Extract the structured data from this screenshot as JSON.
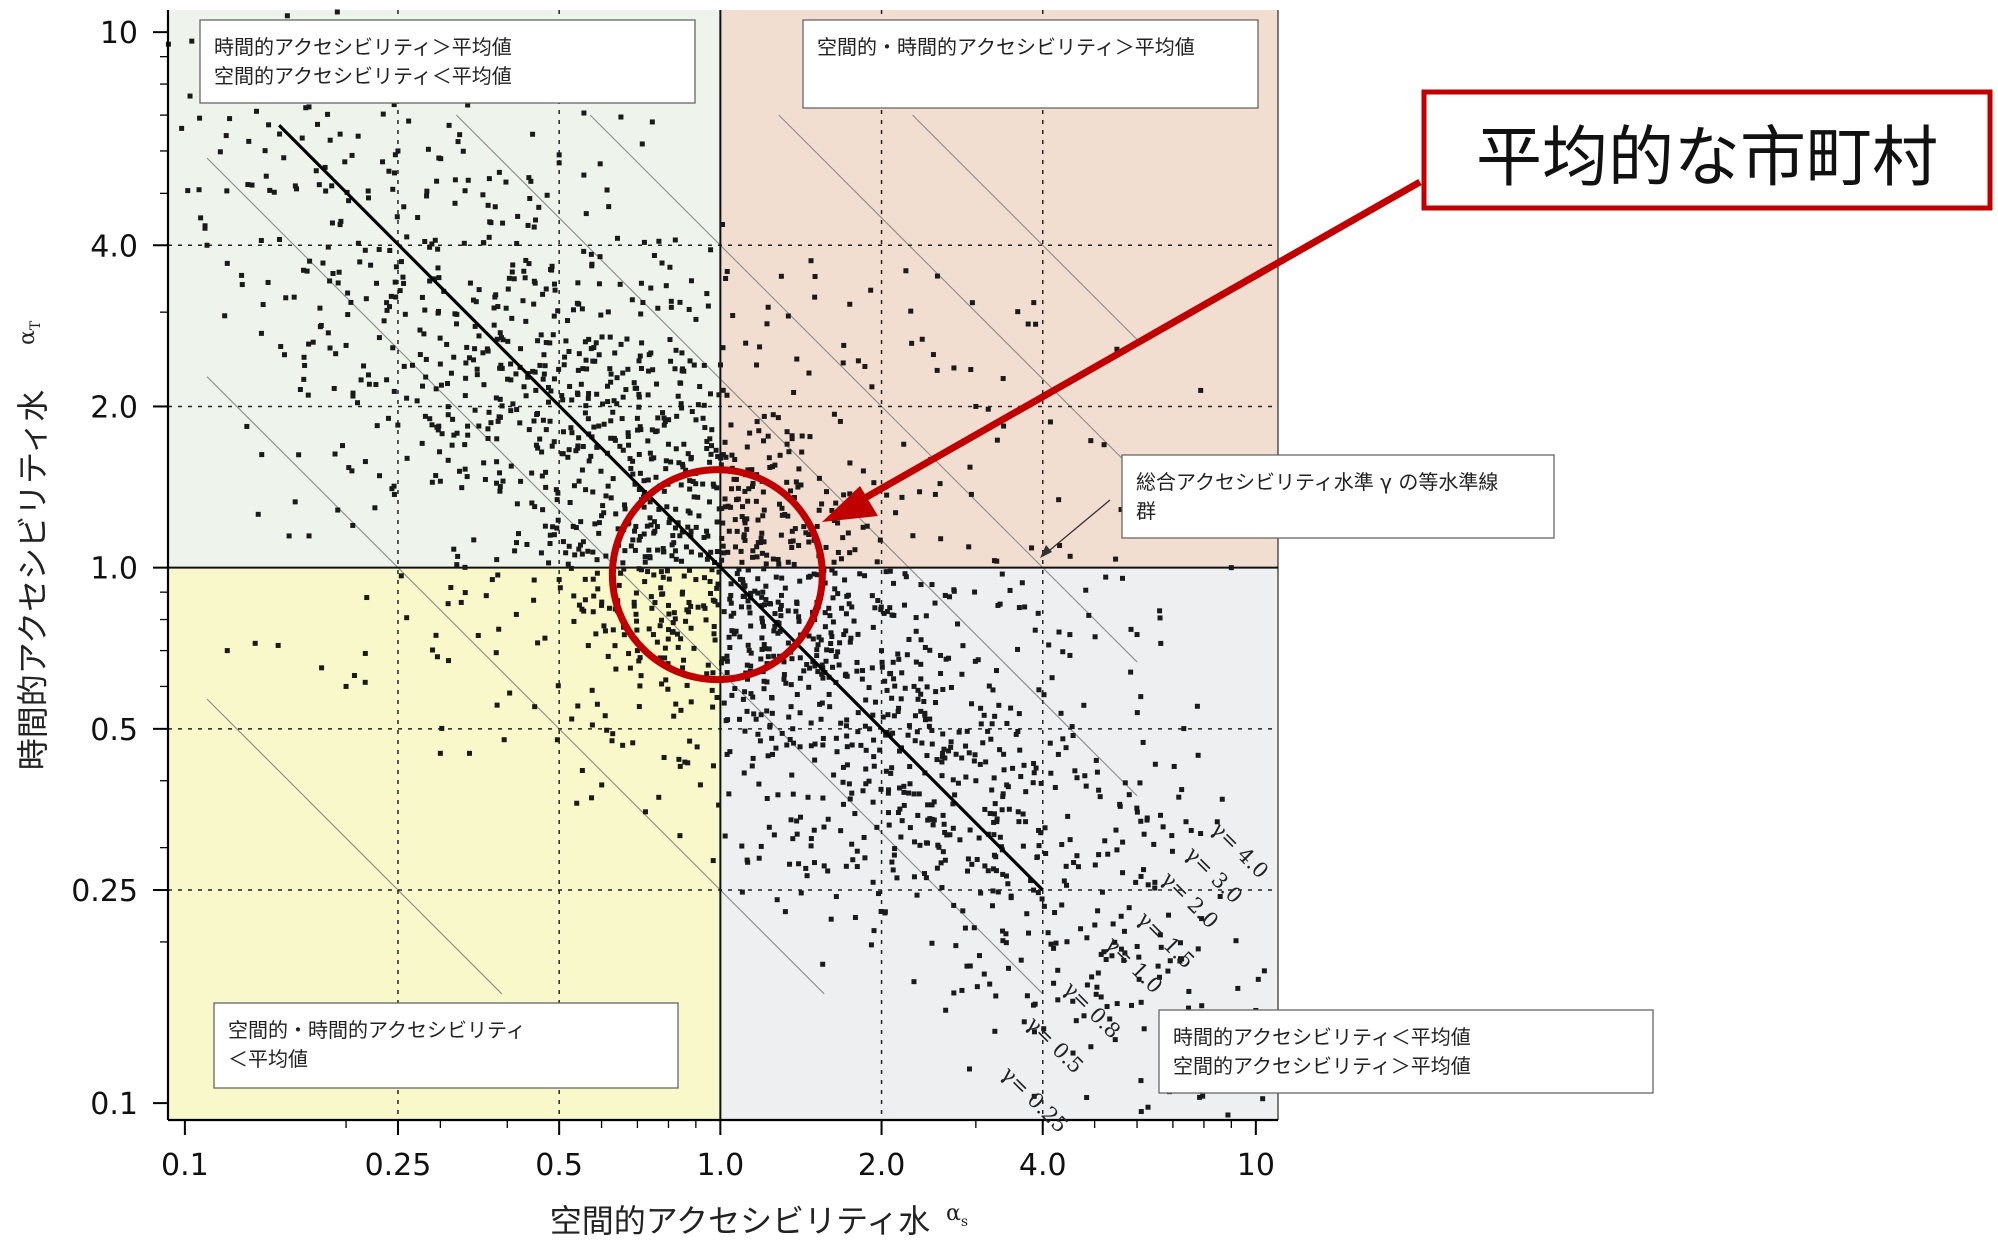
{
  "chart_data": {
    "type": "scatter",
    "x_scale": "log",
    "y_scale": "log",
    "xlim": [
      0.093,
      11.0
    ],
    "ylim": [
      0.093,
      11.0
    ],
    "x_ticks": [
      "0.1",
      "0.25",
      "0.5",
      "1.0",
      "2.0",
      "4.0",
      "10"
    ],
    "y_ticks": [
      "0.1",
      "0.25",
      "0.5",
      "1.0",
      "2.0",
      "4.0",
      "10"
    ],
    "xlabel": "空間的アクセシビリティ水",
    "xlabel_symbol": "α",
    "xlabel_sub": "s",
    "ylabel": "時間的アクセシビリティ水",
    "ylabel_symbol": "α",
    "ylabel_sub": "T",
    "quadrants": [
      {
        "text": [
          "時間的アクセシビリティ＞平均値",
          "空間的アクセシビリティ＜平均値"
        ],
        "color": "#eef4ec"
      },
      {
        "text": [
          "空間的・時間的アクセシビリティ＞平均値"
        ],
        "color": "#f2ddd1"
      },
      {
        "text": [
          "空間的・時間的アクセシビリティ",
          "＜平均値"
        ],
        "color": "#f9f8cb"
      },
      {
        "text": [
          "時間的アクセシビリティ＜平均値",
          "空間的アクセシビリティ＞平均値"
        ],
        "color": "#edeff1"
      }
    ],
    "isolines": [
      0.25,
      0.5,
      0.8,
      1.0,
      1.5,
      2.0,
      3.0,
      4.0
    ],
    "isoline_labels": [
      "γ= 0.25",
      "γ= 0.5",
      "γ= 0.8",
      "γ= 1.0",
      "γ= 1.5",
      "γ= 2.0",
      "γ= 3.0",
      "γ= 4.0"
    ],
    "isoline_annotation": [
      "総合アクセシビリティ水準 γ の等水準線",
      "群"
    ],
    "callout": "平均的な市町村",
    "callout_color": "#c00000",
    "highlight_circle": {
      "center": [
        1.0,
        1.0
      ],
      "note": "average municipalities"
    },
    "points_note": "approx. 1800 municipalities; dense cloud along γ≈1",
    "points": [
      [
        0.25,
        6.0
      ],
      [
        0.5,
        5.9
      ],
      [
        0.5,
        5.7
      ],
      [
        0.32,
        5.3
      ],
      [
        1.5,
        3.2
      ],
      [
        0.55,
        2.2
      ],
      [
        0.7,
        1.9
      ],
      [
        0.8,
        1.7
      ],
      [
        0.9,
        1.5
      ],
      [
        1.1,
        1.3
      ],
      [
        1.2,
        1.25
      ],
      [
        1.3,
        1.15
      ],
      [
        1.4,
        1.1
      ],
      [
        0.95,
        1.05
      ],
      [
        0.9,
        0.95
      ],
      [
        0.85,
        0.9
      ],
      [
        0.8,
        0.85
      ],
      [
        1.1,
        0.95
      ],
      [
        1.2,
        0.9
      ],
      [
        1.3,
        0.85
      ],
      [
        1.5,
        0.8
      ],
      [
        1.7,
        0.75
      ],
      [
        2.0,
        0.7
      ],
      [
        2.3,
        0.6
      ],
      [
        0.6,
        0.85
      ],
      [
        0.5,
        0.95
      ],
      [
        0.7,
        0.7
      ],
      [
        0.75,
        0.75
      ],
      [
        0.85,
        0.65
      ],
      [
        1.6,
        0.55
      ],
      [
        1.9,
        0.5
      ],
      [
        2.6,
        0.45
      ],
      [
        3.0,
        0.4
      ],
      [
        3.6,
        0.35
      ],
      [
        0.18,
        0.65
      ],
      [
        0.2,
        0.6
      ],
      [
        0.12,
        0.7
      ],
      [
        0.3,
        0.45
      ],
      [
        0.45,
        0.55
      ],
      [
        0.34,
        0.45
      ],
      [
        9.0,
        1.0
      ],
      [
        7.0,
        1.3
      ],
      [
        6.0,
        0.75
      ],
      [
        2.5,
        2.5
      ],
      [
        3.0,
        2.0
      ],
      [
        2.2,
        1.7
      ],
      [
        1.7,
        2.6
      ],
      [
        1.3,
        3.5
      ],
      [
        0.12,
        3.7
      ],
      [
        0.14,
        3.1
      ],
      [
        0.2,
        2.6
      ],
      [
        0.17,
        2.1
      ],
      [
        0.24,
        1.9
      ],
      [
        0.26,
        1.6
      ],
      [
        0.3,
        1.45
      ],
      [
        0.45,
        1.3
      ],
      [
        0.6,
        1.25
      ],
      [
        0.65,
        1.15
      ],
      [
        4.5,
        1.05
      ],
      [
        4.3,
        1.1
      ],
      [
        0.11,
        4.0
      ],
      [
        0.107,
        4.5
      ],
      [
        0.16,
        3.2
      ],
      [
        0.3,
        2.4
      ]
    ]
  }
}
